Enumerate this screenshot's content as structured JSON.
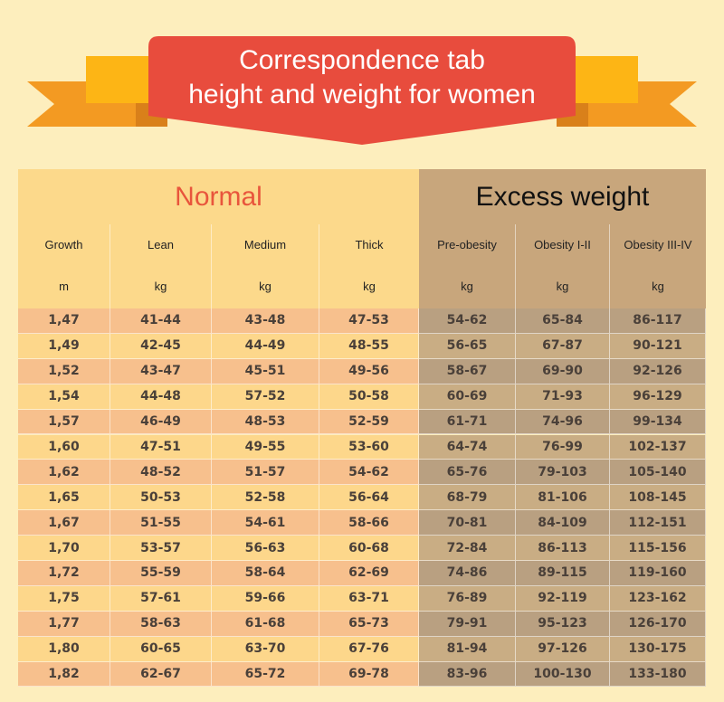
{
  "banner": {
    "title_lines": [
      "Correspondence tab",
      "height and weight for women"
    ]
  },
  "table": {
    "groups": [
      "Normal",
      "Excess weight"
    ],
    "columns": [
      {
        "name": "Growth",
        "unit": "m"
      },
      {
        "name": "Lean",
        "unit": "kg"
      },
      {
        "name": "Medium",
        "unit": "kg"
      },
      {
        "name": "Thick",
        "unit": "kg"
      },
      {
        "name": "Pre-obesity",
        "unit": "kg"
      },
      {
        "name": "Obesity I-II",
        "unit": "kg"
      },
      {
        "name": "Obesity III-IV",
        "unit": "kg"
      }
    ],
    "rows": [
      [
        "1,47",
        "41-44",
        "43-48",
        "47-53",
        "54-62",
        "65-84",
        "86-117"
      ],
      [
        "1,49",
        "42-45",
        "44-49",
        "48-55",
        "56-65",
        "67-87",
        "90-121"
      ],
      [
        "1,52",
        "43-47",
        "45-51",
        "49-56",
        "58-67",
        "69-90",
        "92-126"
      ],
      [
        "1,54",
        "44-48",
        "57-52",
        "50-58",
        "60-69",
        "71-93",
        "96-129"
      ],
      [
        "1,57",
        "46-49",
        "48-53",
        "52-59",
        "61-71",
        "74-96",
        "99-134"
      ],
      [
        "1,60",
        "47-51",
        "49-55",
        "53-60",
        "64-74",
        "76-99",
        "102-137"
      ],
      [
        "1,62",
        "48-52",
        "51-57",
        "54-62",
        "65-76",
        "79-103",
        "105-140"
      ],
      [
        "1,65",
        "50-53",
        "52-58",
        "56-64",
        "68-79",
        "81-106",
        "108-145"
      ],
      [
        "1,67",
        "51-55",
        "54-61",
        "58-66",
        "70-81",
        "84-109",
        "112-151"
      ],
      [
        "1,70",
        "53-57",
        "56-63",
        "60-68",
        "72-84",
        "86-113",
        "115-156"
      ],
      [
        "1,72",
        "55-59",
        "58-64",
        "62-69",
        "74-86",
        "89-115",
        "119-160"
      ],
      [
        "1,75",
        "57-61",
        "59-66",
        "63-71",
        "76-89",
        "92-119",
        "123-162"
      ],
      [
        "1,77",
        "58-63",
        "61-68",
        "65-73",
        "79-91",
        "95-123",
        "126-170"
      ],
      [
        "1,80",
        "60-65",
        "63-70",
        "67-76",
        "81-94",
        "97-126",
        "130-175"
      ],
      [
        "1,82",
        "62-67",
        "65-72",
        "69-78",
        "83-96",
        "100-130",
        "133-180"
      ]
    ]
  }
}
